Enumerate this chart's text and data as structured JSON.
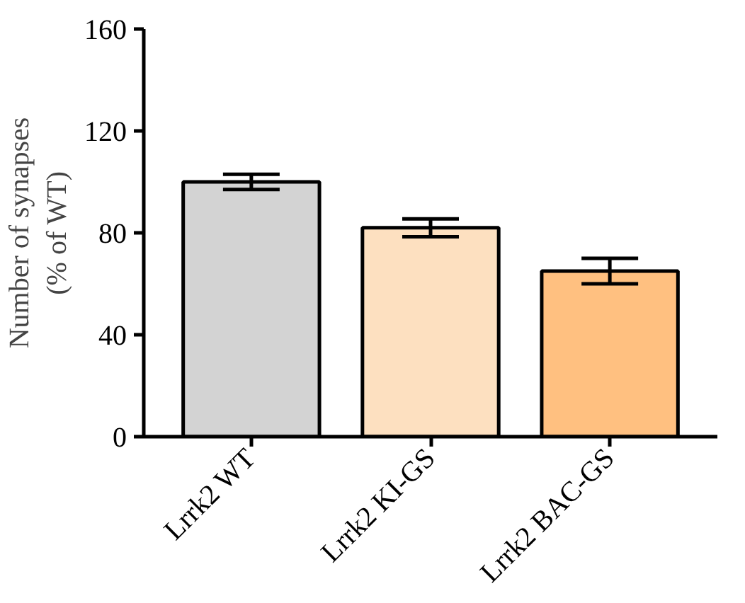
{
  "chart_data": {
    "type": "bar",
    "ylabel": "Number of synapses\n(% of WT)",
    "categories": [
      "Lrrk2 WT",
      "Lrrk2 KI-GS",
      "Lrrk2 BAC-GS"
    ],
    "values": [
      100,
      82,
      65
    ],
    "errors": [
      3,
      3.5,
      5
    ],
    "colors": [
      "#d3d3d3",
      "#fde0c0",
      "#ffc080"
    ],
    "ylim": [
      0,
      160
    ],
    "yticks": [
      0,
      40,
      80,
      120,
      160
    ]
  }
}
